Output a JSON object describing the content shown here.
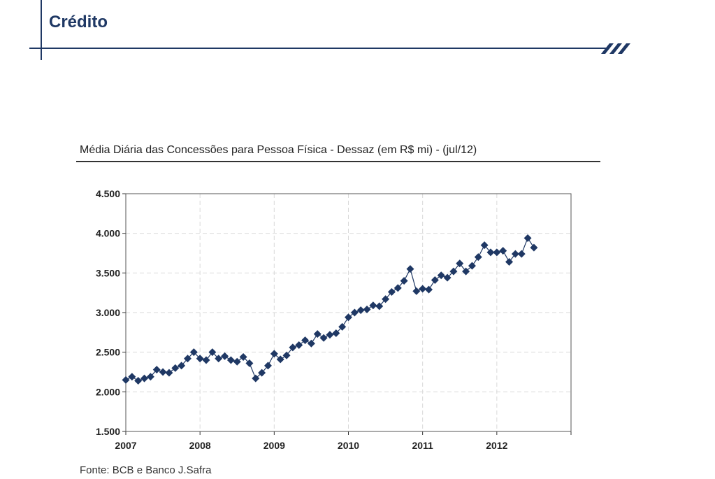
{
  "header": {
    "title": "Crédito"
  },
  "colors": {
    "brand": "#1f3864",
    "series": "#1f3864",
    "grid": "#d9d9d9"
  },
  "chart_data": {
    "type": "line",
    "title": "Média Diária das Concessões para Pessoa Física - Dessaz (em R$ mi) - (jul/12)",
    "xlabel": "",
    "ylabel": "",
    "ylim": [
      1500,
      4500
    ],
    "yticks": [
      "1.500",
      "2.000",
      "2.500",
      "3.000",
      "3.500",
      "4.000",
      "4.500"
    ],
    "ytick_values": [
      1500,
      2000,
      2500,
      3000,
      3500,
      4000,
      4500
    ],
    "xticks": [
      "2007",
      "2008",
      "2009",
      "2010",
      "2011",
      "2012"
    ],
    "grid": true,
    "marker": "diamond",
    "series": [
      {
        "start": "2007-01",
        "end": "2012-07",
        "values": [
          2150,
          2190,
          2140,
          2170,
          2190,
          2280,
          2250,
          2240,
          2300,
          2330,
          2420,
          2500,
          2420,
          2400,
          2500,
          2420,
          2450,
          2400,
          2380,
          2440,
          2360,
          2170,
          2240,
          2330,
          2480,
          2410,
          2460,
          2560,
          2590,
          2650,
          2610,
          2730,
          2680,
          2720,
          2740,
          2820,
          2940,
          3000,
          3030,
          3040,
          3090,
          3080,
          3170,
          3260,
          3310,
          3400,
          3550,
          3270,
          3300,
          3290,
          3410,
          3470,
          3440,
          3520,
          3620,
          3520,
          3590,
          3700,
          3850,
          3760,
          3760,
          3780,
          3640,
          3740,
          3740,
          3940,
          3820
        ]
      }
    ]
  },
  "source": "Fonte: BCB e Banco J.Safra"
}
